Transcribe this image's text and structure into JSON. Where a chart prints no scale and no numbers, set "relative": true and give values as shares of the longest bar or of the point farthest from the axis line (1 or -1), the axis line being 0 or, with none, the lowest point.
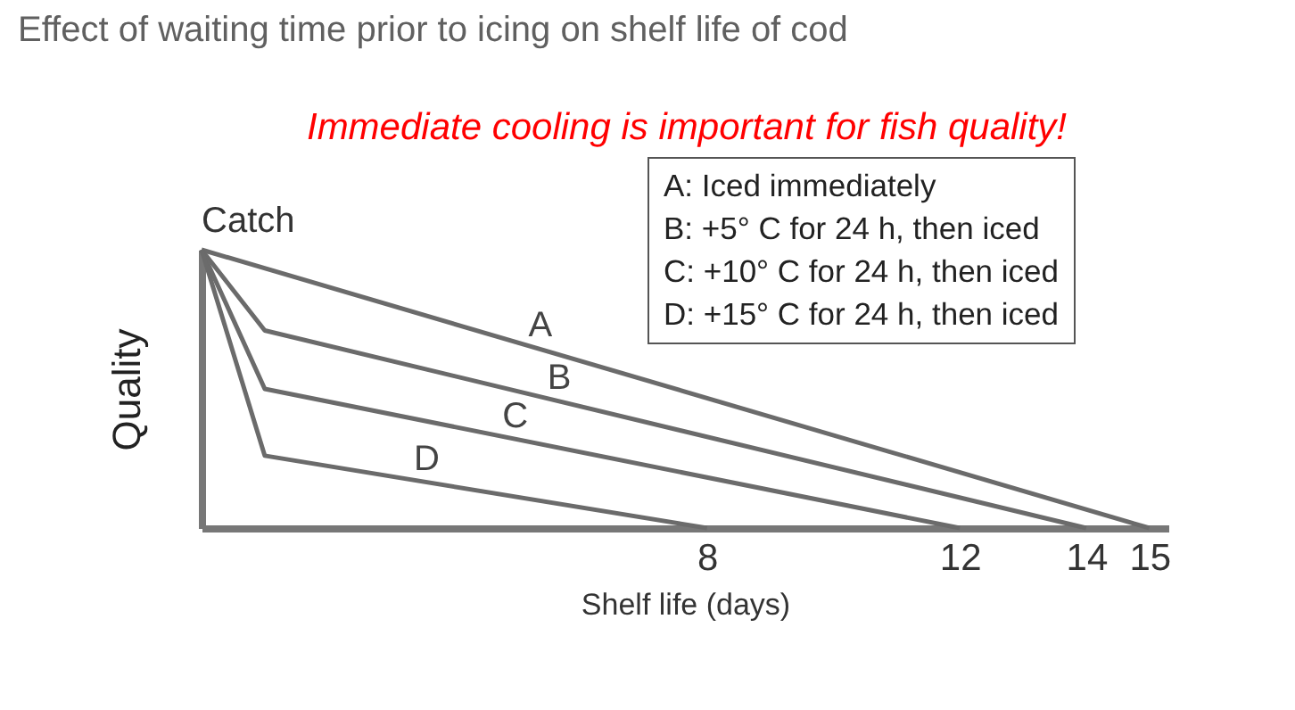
{
  "chart_data": {
    "type": "line",
    "title": "Effect of waiting time prior to icing on shelf life of cod",
    "subtitle": "Immediate cooling is important for fish quality!",
    "xlabel": "Shelf life (days)",
    "ylabel": "Quality",
    "relative": true,
    "xlim": [
      0,
      15.3
    ],
    "xticks": [
      8,
      12,
      14,
      15
    ],
    "grid": false,
    "legend": false,
    "marker": "none",
    "line_style": "solid",
    "series": [
      {
        "name": "A",
        "color": "#6b6b6b",
        "x": [
          0,
          15
        ],
        "values": [
          1,
          0
        ]
      },
      {
        "name": "B",
        "color": "#6b6b6b",
        "x": [
          0,
          1,
          14
        ],
        "values": [
          1,
          0.71,
          0
        ]
      },
      {
        "name": "C",
        "color": "#6b6b6b",
        "x": [
          0,
          1,
          12
        ],
        "values": [
          1,
          0.5,
          0
        ]
      },
      {
        "name": "D",
        "color": "#6b6b6b",
        "x": [
          0,
          1,
          8
        ],
        "values": [
          1,
          0.26,
          0
        ]
      }
    ],
    "annotations": [
      {
        "text": "Catch",
        "x": 0,
        "y": 1
      },
      "A: Iced immediately",
      "B: +5° C for 24 h, then iced",
      "C: +10° C for 24 h, then iced",
      "D: +15° C for 24 h, then iced"
    ]
  }
}
